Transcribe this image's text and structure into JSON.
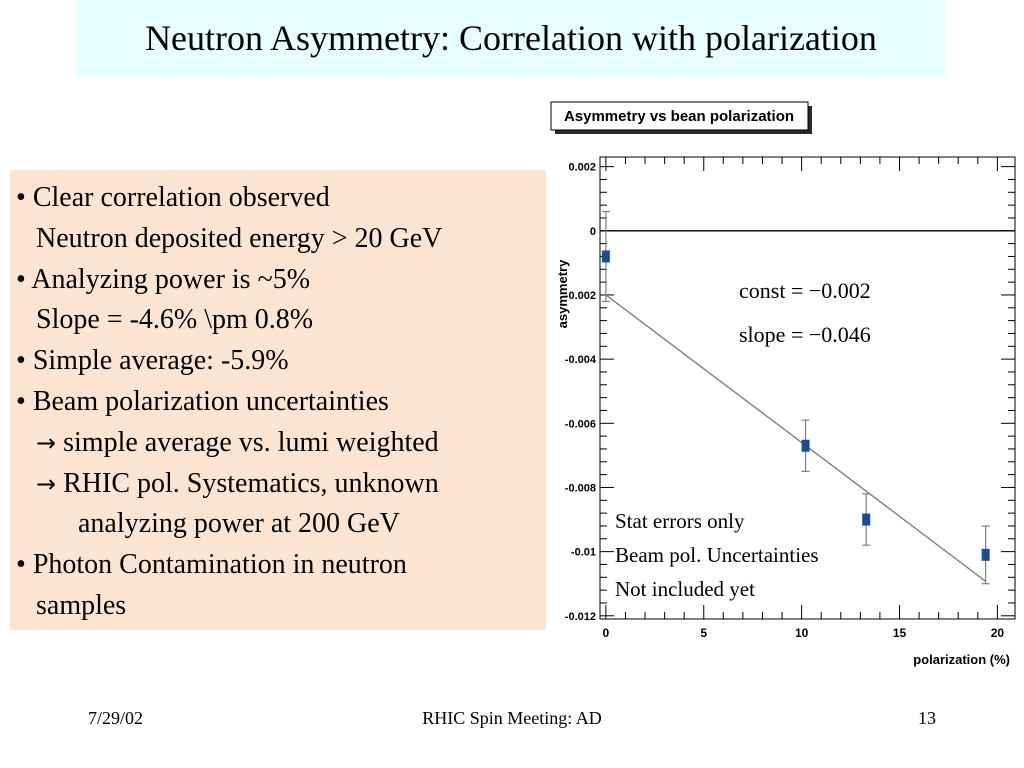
{
  "slide": {
    "title": "Neutron Asymmetry: Correlation with polarization",
    "bullets": [
      {
        "marker": "•",
        "text": "Clear correlation observed"
      },
      {
        "text": "Neutron deposited energy > 20 GeV"
      },
      {
        "marker": "•",
        "text": "Analyzing power is ~5%"
      },
      {
        "text": "Slope = -4.6% \\pm 0.8%"
      },
      {
        "marker": "•",
        "text": "Simple average: -5.9%"
      },
      {
        "marker": "•",
        "text": "Beam polarization uncertainties"
      },
      {
        "arrow": "→",
        "text": "simple average vs. lumi weighted"
      },
      {
        "arrow": "→",
        "text": "RHIC pol. Systematics, unknown"
      },
      {
        "text": "analyzing power at 200 GeV"
      },
      {
        "marker": "•",
        "text": "Photon Contamination in neutron"
      },
      {
        "text": "samples"
      }
    ],
    "footer": {
      "date": "7/29/02",
      "center": "RHIC Spin Meeting: AD",
      "page": "13"
    }
  },
  "chart_data": {
    "type": "scatter",
    "title": "Asymmetry vs bean polarization",
    "xlabel": "polarization (%)",
    "ylabel": "asymmetry",
    "xlim": [
      -0.3,
      20.9
    ],
    "ylim": [
      -0.0121,
      0.0023
    ],
    "xticks": [
      "0",
      "5",
      "10",
      "15",
      "20"
    ],
    "xtick_values": [
      0,
      5,
      10,
      15,
      20
    ],
    "yticks": [
      "0.002",
      "0",
      "-0.002",
      "-0.004",
      "-0.006",
      "-0.008",
      "-0.01",
      "-0.012"
    ],
    "ytick_values": [
      0.002,
      0,
      -0.002,
      -0.004,
      -0.006,
      -0.008,
      -0.01,
      -0.012
    ],
    "series": [
      {
        "x": [
          0,
          10.2,
          13.3,
          19.4
        ],
        "y": [
          -0.0008,
          -0.0067,
          -0.009,
          -0.0101
        ],
        "yerr": [
          0.0014,
          0.0008,
          0.0008,
          0.0009
        ]
      }
    ],
    "fit": {
      "const": -0.002,
      "slope": -0.046,
      "x_range": [
        0,
        19.4
      ],
      "label_const": "const = −0.002",
      "label_slope": "slope = −0.046"
    },
    "zero_line": true,
    "annotations": [
      "Stat errors only",
      "Beam pol. Uncertainties",
      "Not included yet"
    ],
    "colors": {
      "marker": "#1a4f8f",
      "line": "#000000",
      "fit": "#808080",
      "errorbar": "#808080"
    }
  }
}
